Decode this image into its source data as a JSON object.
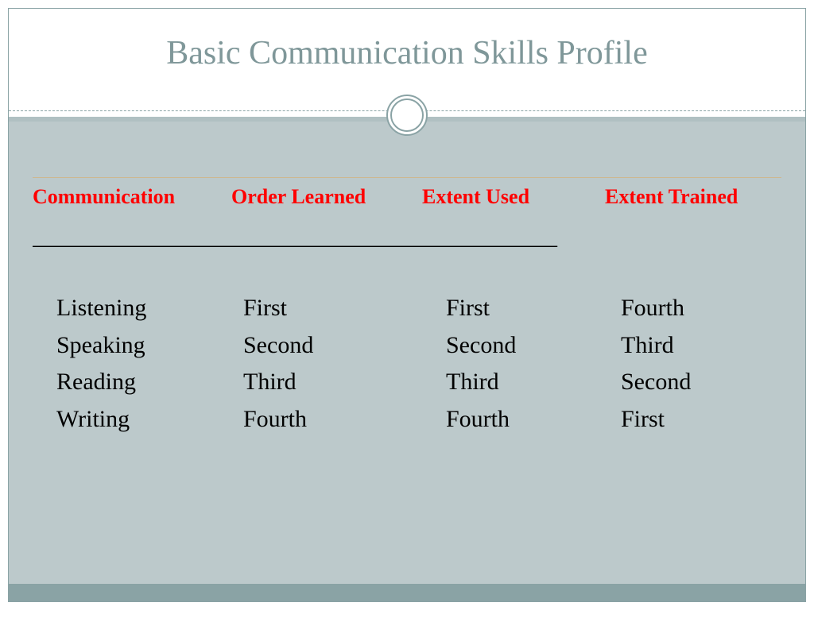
{
  "colors": {
    "title": "#7f9799",
    "border": "#8aa3a5",
    "body_bg": "#bcc9cb",
    "header_text": "#ff0000",
    "data_text": "#000000",
    "footer_band": "#8aa3a5",
    "thin_line": "#cdb891"
  },
  "title": "Basic Communication Skills Profile",
  "table": {
    "headers": {
      "col1": "Communication",
      "col2": "Order Learned",
      "col3": "Extent Used",
      "col4": "Extent Trained"
    },
    "underline": "____________________________________________",
    "rows": [
      {
        "c1": "Listening",
        "c2": "First",
        "c3": "First",
        "c4": "Fourth"
      },
      {
        "c1": "Speaking",
        "c2": "Second",
        "c3": "Second",
        "c4": "Third"
      },
      {
        "c1": "Reading",
        "c2": "Third",
        "c3": "Third",
        "c4": "Second"
      },
      {
        "c1": "Writing",
        "c2": "Fourth",
        "c3": "Fourth",
        "c4": "First"
      }
    ]
  }
}
